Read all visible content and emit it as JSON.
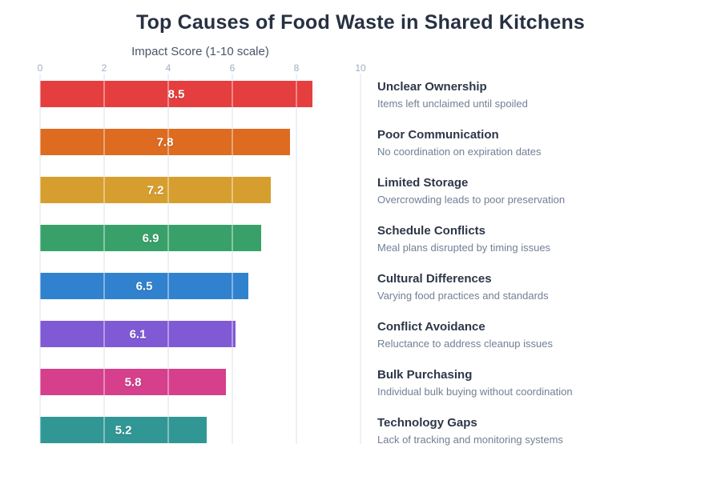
{
  "title": "Top Causes of Food Waste in Shared Kitchens",
  "chart_data": {
    "type": "bar",
    "orientation": "horizontal",
    "title": "Top Causes of Food Waste in Shared Kitchens",
    "xlabel": "Impact Score (1-10 scale)",
    "xlim": [
      0,
      10
    ],
    "x_ticks": [
      "0",
      "2",
      "4",
      "6",
      "8",
      "10"
    ],
    "x_tick_values": [
      0,
      2,
      4,
      6,
      8,
      10
    ],
    "grid": true,
    "value_labels": "inside-center",
    "categories": [
      "Unclear Ownership",
      "Poor Communication",
      "Limited Storage",
      "Schedule Conflicts",
      "Cultural Differences",
      "Conflict Avoidance",
      "Bulk Purchasing",
      "Technology Gaps"
    ],
    "values": [
      8.5,
      7.8,
      7.2,
      6.9,
      6.5,
      6.1,
      5.8,
      5.2
    ],
    "value_label_texts": [
      "8.5",
      "7.8",
      "7.2",
      "6.9",
      "6.5",
      "6.1",
      "5.8",
      "5.2"
    ],
    "descriptions": [
      "Items left unclaimed until spoiled",
      "No coordination on expiration dates",
      "Overcrowding leads to poor preservation",
      "Meal plans disrupted by timing issues",
      "Varying food practices and standards",
      "Reluctance to address cleanup issues",
      "Individual bulk buying without coordination",
      "Lack of tracking and monitoring systems"
    ],
    "bar_colors": [
      "#e53e3e",
      "#dd6b20",
      "#d69e2e",
      "#38a169",
      "#3182ce",
      "#805ad5",
      "#d53f8c",
      "#319795"
    ],
    "legend_position": "right"
  },
  "colors": {
    "background": "#ffffff",
    "title_text": "#273142",
    "axis_label_text": "#4a5568",
    "tick_text": "#a0aec0",
    "gridline": "#e2e8f0",
    "value_label_text": "#ffffff",
    "cause_title_text": "#2d3748",
    "cause_description_text": "#718096"
  }
}
